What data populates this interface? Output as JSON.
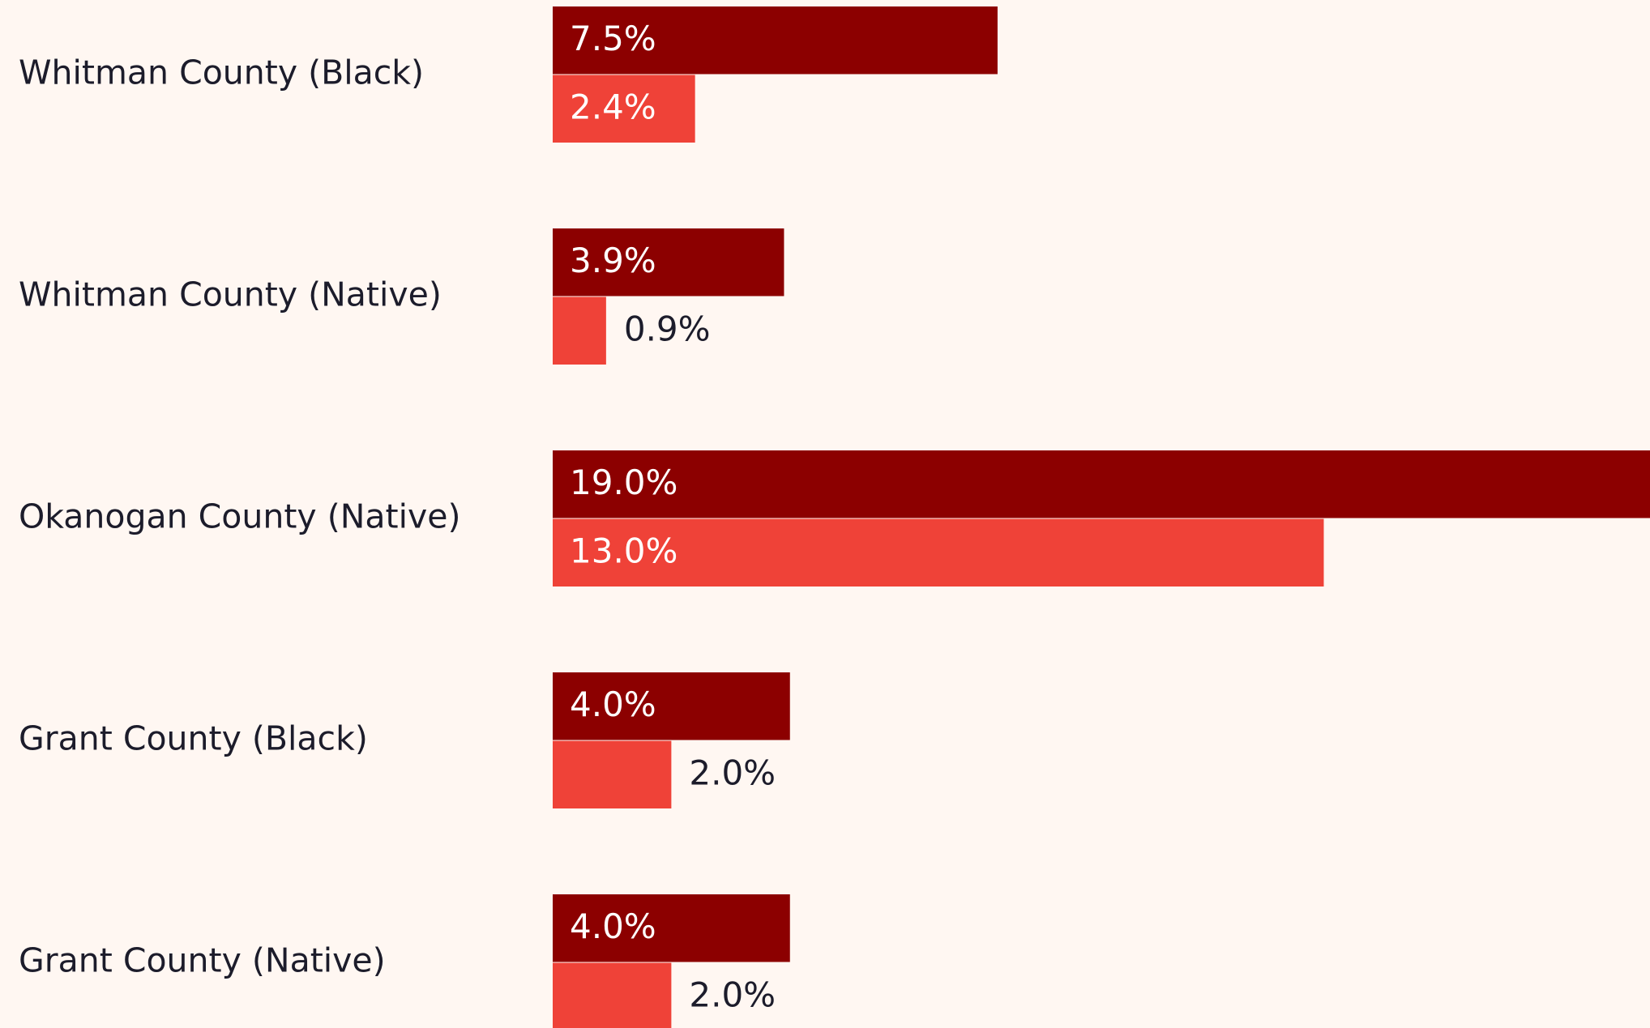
{
  "chart_data": {
    "type": "bar",
    "orientation": "horizontal",
    "categories": [
      "Whitman County (Black)",
      "Whitman County (Native)",
      "Okanogan County (Native)",
      "Grant County (Black)",
      "Grant County (Native)"
    ],
    "series": [
      {
        "color": "#8c0000",
        "values": [
          7.5,
          3.9,
          19.0,
          4.0,
          4.0
        ],
        "value_labels": [
          "7.5%",
          "3.9%",
          "19.0%",
          "4.0%",
          "4.0%"
        ]
      },
      {
        "color": "#ef4238",
        "values": [
          2.4,
          0.9,
          13.0,
          2.0,
          2.0
        ],
        "value_labels": [
          "2.4%",
          "0.9%",
          "13.0%",
          "2.0%",
          "2.0%"
        ]
      }
    ],
    "xlim": [
      0,
      18.5
    ]
  }
}
